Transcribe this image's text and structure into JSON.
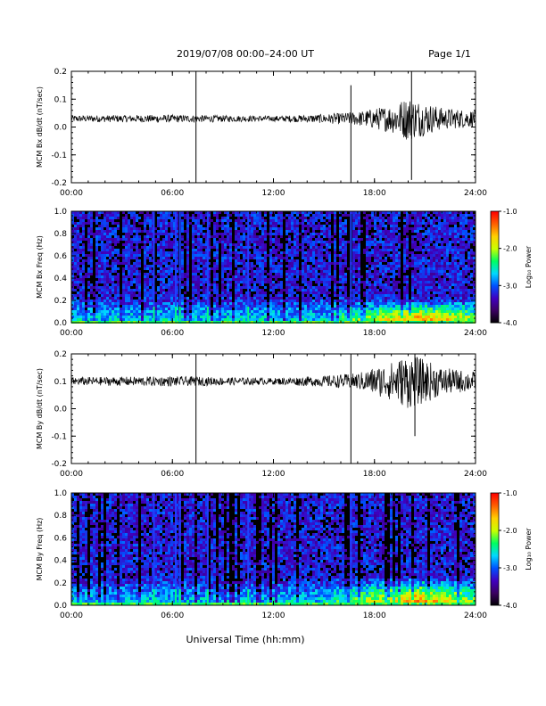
{
  "header": {
    "title": "2019/07/08   00:00–24:00 UT",
    "page": "Page 1/1"
  },
  "footer": {
    "xlabel": "Universal Time (hh:mm)"
  },
  "colorbar": {
    "label": "Log₁₀ Power",
    "ticks": [
      "-1.0",
      "-2.0",
      "-3.0",
      "-4.0"
    ],
    "range": [
      -4.0,
      -1.0
    ],
    "colormap": [
      "#000000",
      "#3a0060",
      "#4000c0",
      "#0050ff",
      "#00d8ff",
      "#00ff60",
      "#c8ff00",
      "#ffd000",
      "#ff6000",
      "#ff0000"
    ]
  },
  "chart_data": [
    {
      "type": "line",
      "ylabel": "MCM Bx dB/dt (nT/sec)",
      "xlim": [
        0,
        24
      ],
      "ylim": [
        -0.2,
        0.2
      ],
      "yticks": [
        "0.2",
        "0.1",
        "0.0",
        "-0.1",
        "-0.2"
      ],
      "xticks": [
        "00:00",
        "06:00",
        "12:00",
        "18:00",
        "24:00"
      ],
      "baseline": 0.03,
      "series": [
        {
          "noise_envelope": [
            {
              "t": 0,
              "amp": 0.012
            },
            {
              "t": 6,
              "amp": 0.014
            },
            {
              "t": 12,
              "amp": 0.01
            },
            {
              "t": 15,
              "amp": 0.016
            },
            {
              "t": 17,
              "amp": 0.025
            },
            {
              "t": 19,
              "amp": 0.05
            },
            {
              "t": 20,
              "amp": 0.08
            },
            {
              "t": 21,
              "amp": 0.06
            },
            {
              "t": 22,
              "amp": 0.04
            },
            {
              "t": 24,
              "amp": 0.03
            }
          ],
          "spikes": [
            {
              "t": 7.4,
              "min": -0.2,
              "max": 0.2
            },
            {
              "t": 16.6,
              "min": -0.2,
              "max": 0.15
            },
            {
              "t": 20.2,
              "min": -0.19,
              "max": 0.2
            }
          ]
        }
      ]
    },
    {
      "type": "heatmap",
      "ylabel": "MCM Bx Freq (Hz)",
      "xlim": [
        0,
        24
      ],
      "ylim": [
        0.0,
        1.0
      ],
      "yticks": [
        "1.0",
        "0.8",
        "0.6",
        "0.4",
        "0.2",
        "0.0"
      ],
      "xticks": [
        "00:00",
        "06:00",
        "12:00",
        "18:00",
        "24:00"
      ],
      "log10_power_range": [
        -4.0,
        -1.0
      ],
      "vertical_streaks": [
        4.9,
        6.2,
        6.45,
        8.1,
        10.5,
        16.6
      ],
      "low_frequency_enhancement": {
        "start": 15.0,
        "peak": 20.5,
        "max_freq": 0.2
      }
    },
    {
      "type": "line",
      "ylabel": "MCM By dB/dt (nT/sec)",
      "xlim": [
        0,
        24
      ],
      "ylim": [
        -0.2,
        0.2
      ],
      "yticks": [
        "0.2",
        "0.1",
        "0.0",
        "-0.1",
        "-0.2"
      ],
      "xticks": [
        "00:00",
        "06:00",
        "12:00",
        "18:00",
        "24:00"
      ],
      "baseline": 0.1,
      "series": [
        {
          "noise_envelope": [
            {
              "t": 0,
              "amp": 0.015
            },
            {
              "t": 6,
              "amp": 0.018
            },
            {
              "t": 12,
              "amp": 0.012
            },
            {
              "t": 15,
              "amp": 0.02
            },
            {
              "t": 17,
              "amp": 0.03
            },
            {
              "t": 19,
              "amp": 0.07
            },
            {
              "t": 20,
              "amp": 0.1
            },
            {
              "t": 21,
              "amp": 0.08
            },
            {
              "t": 22,
              "amp": 0.05
            },
            {
              "t": 24,
              "amp": 0.035
            }
          ],
          "spikes": [
            {
              "t": 7.4,
              "min": -0.2,
              "max": 0.2
            },
            {
              "t": 16.6,
              "min": -0.2,
              "max": 0.2
            },
            {
              "t": 20.4,
              "min": -0.1,
              "max": 0.2
            }
          ]
        }
      ]
    },
    {
      "type": "heatmap",
      "ylabel": "MCM By Freq (Hz)",
      "xlim": [
        0,
        24
      ],
      "ylim": [
        0.0,
        1.0
      ],
      "yticks": [
        "1.0",
        "0.8",
        "0.6",
        "0.4",
        "0.2",
        "0.0"
      ],
      "xticks": [
        "00:00",
        "06:00",
        "12:00",
        "18:00",
        "24:00"
      ],
      "log10_power_range": [
        -4.0,
        -1.0
      ],
      "vertical_streaks": [
        4.9,
        6.2,
        6.45,
        8.1,
        10.5,
        16.6
      ],
      "low_frequency_enhancement": {
        "start": 15.0,
        "peak": 20.5,
        "max_freq": 0.25
      }
    }
  ]
}
